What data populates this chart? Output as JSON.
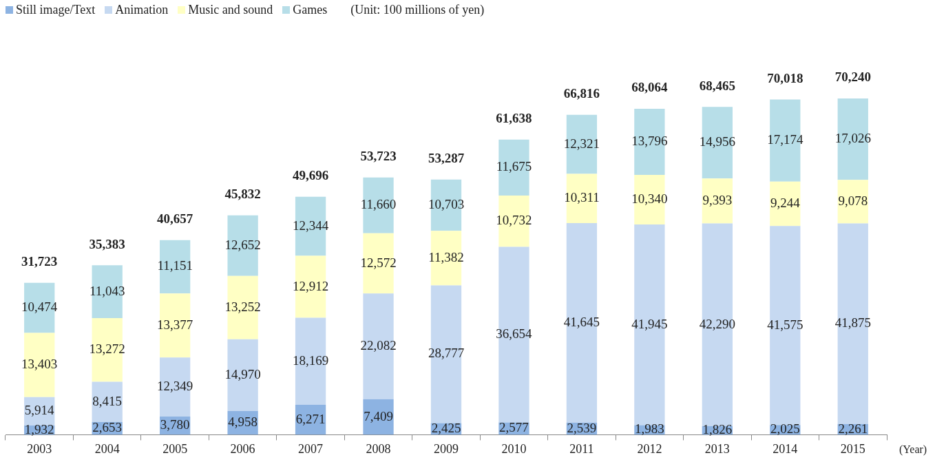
{
  "chart_data": {
    "type": "bar",
    "stacked": true,
    "legend": "top left",
    "grid": false,
    "categories": [
      "2003",
      "2004",
      "2005",
      "2006",
      "2007",
      "2008",
      "2009",
      "2010",
      "2011",
      "2012",
      "2013",
      "2014",
      "2015"
    ],
    "series": [
      {
        "name": "Still image/Text",
        "color": "#8db3e2",
        "values": [
          1932,
          2653,
          3780,
          4958,
          6271,
          7409,
          2425,
          2577,
          2539,
          1983,
          1826,
          2025,
          2261
        ],
        "value_labels": [
          "1,932",
          "2,653",
          "3,780",
          "4,958",
          "6,271",
          "7,409",
          "2,425",
          "2,577",
          "2,539",
          "1,983",
          "1,826",
          "2,025",
          "2,261"
        ]
      },
      {
        "name": "Animation",
        "color": "#c6d9f1",
        "values": [
          5914,
          8415,
          12349,
          14970,
          18169,
          22082,
          28777,
          36654,
          41645,
          41945,
          42290,
          41575,
          41875
        ],
        "value_labels": [
          "5,914",
          "8,415",
          "12,349",
          "14,970",
          "18,169",
          "22,082",
          "28,777",
          "36,654",
          "41,645",
          "41,945",
          "42,290",
          "41,575",
          "41,875"
        ]
      },
      {
        "name": "Music and sound",
        "color": "#ffffc4",
        "values": [
          13403,
          13272,
          13377,
          13252,
          12912,
          12572,
          11382,
          10732,
          10311,
          10340,
          9393,
          9244,
          9078
        ],
        "value_labels": [
          "13,403",
          "13,272",
          "13,377",
          "13,252",
          "12,912",
          "12,572",
          "11,382",
          "10,732",
          "10,311",
          "10,340",
          "9,393",
          "9,244",
          "9,078"
        ]
      },
      {
        "name": "Games",
        "color": "#b7dee8",
        "values": [
          10474,
          11043,
          11151,
          12652,
          12344,
          11660,
          10703,
          11675,
          12321,
          13796,
          14956,
          17174,
          17026
        ],
        "value_labels": [
          "10,474",
          "11,043",
          "11,151",
          "12,652",
          "12,344",
          "11,660",
          "10,703",
          "11,675",
          "12,321",
          "13,796",
          "14,956",
          "17,174",
          "17,026"
        ]
      }
    ],
    "totals": [
      "31,723",
      "35,383",
      "40,657",
      "45,832",
      "49,696",
      "53,723",
      "53,287",
      "61,638",
      "66,816",
      "68,064",
      "68,465",
      "70,018",
      "70,240"
    ],
    "annotations": [
      "(Unit: 100 millions of yen)",
      "(Year)"
    ]
  }
}
